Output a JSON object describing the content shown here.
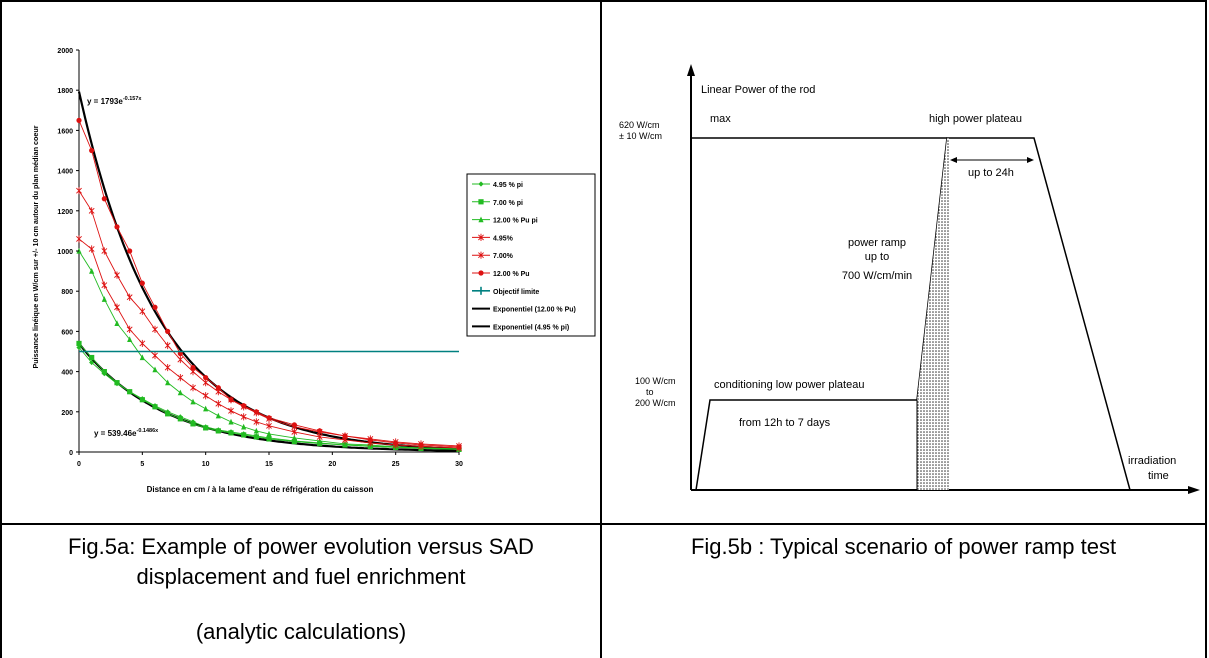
{
  "fig5a": {
    "chart_data": {
      "type": "line",
      "title": "",
      "xlabel": "Distance en cm / à la lame d'eau de réfrigération du caisson",
      "ylabel": "Puissance linéique en W/cm sur +/- 10 cm autour du plan médian coeur",
      "xlim": [
        0,
        30
      ],
      "ylim": [
        0,
        2000
      ],
      "xticks": [
        0,
        5,
        10,
        15,
        20,
        25,
        30
      ],
      "yticks": [
        0,
        200,
        400,
        600,
        800,
        1000,
        1200,
        1400,
        1600,
        1800,
        2000
      ],
      "legend_position": "right",
      "annotations": {
        "upper_fit_prefix": "y = 1793e",
        "upper_fit_exponent": "-0.157x",
        "lower_fit_prefix": "y = 539.46e",
        "lower_fit_exponent": "-0.1486x"
      },
      "series": [
        {
          "name": "4.95 % pi",
          "color": "#22bb22",
          "marker": "diamond",
          "x": [
            0,
            1,
            2,
            3,
            4,
            5,
            6,
            7,
            8,
            9,
            10,
            11,
            12,
            13,
            14,
            15,
            17,
            19,
            21,
            23,
            25,
            27,
            30
          ],
          "y": [
            520,
            445,
            390,
            340,
            300,
            265,
            230,
            200,
            175,
            150,
            125,
            110,
            100,
            90,
            80,
            70,
            55,
            45,
            35,
            30,
            25,
            20,
            15
          ]
        },
        {
          "name": "7.00 % pi",
          "color": "#22bb22",
          "marker": "square",
          "x": [
            0,
            1,
            2,
            3,
            4,
            5,
            6,
            7,
            8,
            9,
            10,
            11,
            12,
            13,
            14,
            15,
            17,
            19,
            21,
            23,
            25,
            27,
            30
          ],
          "y": [
            540,
            470,
            400,
            345,
            300,
            260,
            225,
            190,
            165,
            140,
            120,
            105,
            95,
            85,
            75,
            65,
            52,
            42,
            35,
            28,
            23,
            18,
            13
          ]
        },
        {
          "name": "12.00 % Pu pi",
          "color": "#22bb22",
          "marker": "triangle",
          "x": [
            0,
            1,
            2,
            3,
            4,
            5,
            6,
            7,
            8,
            9,
            10,
            11,
            12,
            13,
            14,
            15,
            17,
            19,
            21,
            23,
            25,
            27,
            30
          ],
          "y": [
            1000,
            900,
            760,
            640,
            560,
            470,
            410,
            345,
            295,
            250,
            215,
            180,
            150,
            125,
            105,
            90,
            70,
            55,
            40,
            35,
            25,
            20,
            15
          ]
        },
        {
          "name": "4.95%",
          "color": "#dd1111",
          "marker": "star",
          "x": [
            0,
            1,
            2,
            3,
            4,
            5,
            6,
            7,
            8,
            9,
            10,
            11,
            12,
            13,
            14,
            15,
            17,
            19,
            21,
            23,
            25,
            27,
            30
          ],
          "y": [
            1060,
            1010,
            830,
            720,
            610,
            540,
            480,
            420,
            370,
            320,
            280,
            240,
            205,
            175,
            150,
            130,
            100,
            75,
            60,
            45,
            35,
            28,
            20
          ]
        },
        {
          "name": "7.00%",
          "color": "#dd1111",
          "marker": "star",
          "x": [
            0,
            1,
            2,
            3,
            4,
            5,
            6,
            7,
            8,
            9,
            10,
            11,
            12,
            13,
            14,
            15,
            17,
            19,
            21,
            23,
            25,
            27,
            30
          ],
          "y": [
            1300,
            1200,
            1000,
            880,
            770,
            700,
            610,
            530,
            460,
            400,
            345,
            300,
            260,
            225,
            195,
            165,
            125,
            100,
            80,
            65,
            50,
            40,
            30
          ]
        },
        {
          "name": "12.00 % Pu",
          "color": "#dd1111",
          "marker": "circle",
          "x": [
            0,
            1,
            2,
            3,
            4,
            5,
            6,
            7,
            8,
            9,
            10,
            11,
            12,
            13,
            14,
            15,
            17,
            19,
            21,
            23,
            25,
            27,
            30
          ],
          "y": [
            1650,
            1500,
            1260,
            1120,
            1000,
            840,
            720,
            600,
            490,
            420,
            370,
            320,
            260,
            230,
            200,
            170,
            135,
            105,
            80,
            60,
            45,
            35,
            25
          ]
        },
        {
          "name": "Objectif limite",
          "color": "#008080",
          "marker": "none",
          "x": [
            0,
            30
          ],
          "y": [
            500,
            500
          ]
        },
        {
          "name": "Exponentiel (12.00 % Pu)",
          "color": "#000000",
          "marker": "none",
          "fit": {
            "a": 1793,
            "b": -0.157
          }
        },
        {
          "name": "Exponentiel (4.95 % pi)",
          "color": "#000000",
          "marker": "none",
          "fit": {
            "a": 539.46,
            "b": -0.1486
          }
        }
      ]
    }
  },
  "fig5b": {
    "ylabel": "Linear Power of the rod",
    "max_label": "max",
    "high_level_line1": "620 W/cm",
    "high_level_line2": "± 10 W/cm",
    "low_level_line1": "100 W/cm",
    "low_level_line2": "to",
    "low_level_line3": "200 W/cm",
    "high_plateau_label": "high power plateau",
    "high_plateau_duration": "up to 24h",
    "ramp_line1": "power ramp",
    "ramp_line2": "up to",
    "ramp_line3": "700 W/cm/min",
    "low_plateau_label": "conditioning low power plateau",
    "low_plateau_duration": "from 12h to 7 days",
    "xlabel_line1": "irradiation",
    "xlabel_line2": "time"
  },
  "captions": {
    "fig5a_line1": "Fig.5a: Example of power evolution versus SAD",
    "fig5a_line2": "displacement and fuel enrichment",
    "fig5a_line3": "(analytic calculations)",
    "fig5b": "Fig.5b : Typical scenario of power ramp test"
  }
}
